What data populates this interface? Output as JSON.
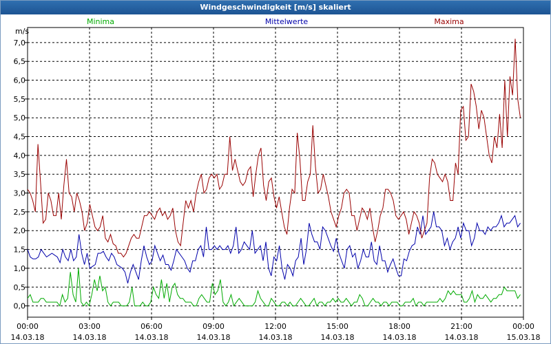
{
  "chart_data": {
    "type": "line",
    "title": "Windgeschwindigkeit [m/s] skaliert",
    "ylabel": "m/s",
    "ylim": [
      -0.3,
      7.4
    ],
    "xlim_hours": [
      0,
      24
    ],
    "grid": true,
    "y_ticks": [
      "0,0",
      "0,5",
      "1,0",
      "1,5",
      "2,0",
      "2,5",
      "3,0",
      "3,5",
      "4,0",
      "4,5",
      "5,0",
      "5,5",
      "6,0",
      "6,5",
      "7,0"
    ],
    "x_ticks": [
      {
        "time": "00:00",
        "date": "14.03.18"
      },
      {
        "time": "03:00",
        "date": "14.03.18"
      },
      {
        "time": "06:00",
        "date": "14.03.18"
      },
      {
        "time": "09:00",
        "date": "14.03.18"
      },
      {
        "time": "12:00",
        "date": "14.03.18"
      },
      {
        "time": "15:00",
        "date": "14.03.18"
      },
      {
        "time": "18:00",
        "date": "14.03.18"
      },
      {
        "time": "21:00",
        "date": "14.03.18"
      },
      {
        "time": "00:00",
        "date": "15.03.18"
      }
    ],
    "series": [
      {
        "name": "Minima",
        "color": "#00aa00",
        "values": [
          0.2,
          0.3,
          0.1,
          0.1,
          0.1,
          0.2,
          0.2,
          0.1,
          0.1,
          0.1,
          0.1,
          0.1,
          0.0,
          0.3,
          0.1,
          0.2,
          0.9,
          0.3,
          0.1,
          1.0,
          0.1,
          0.0,
          0.1,
          0.0,
          0.3,
          0.7,
          0.4,
          0.8,
          0.4,
          0.5,
          0.1,
          0.0,
          0.1,
          0.1,
          0.1,
          0.0,
          0.0,
          0.0,
          0.1,
          0.5,
          0.0,
          0.0,
          0.0,
          0.1,
          0.0,
          0.0,
          0.1,
          0.5,
          0.3,
          0.2,
          0.7,
          0.2,
          0.6,
          0.1,
          0.5,
          0.6,
          0.3,
          0.2,
          0.2,
          0.1,
          0.1,
          0.1,
          0.0,
          0.0,
          0.2,
          0.3,
          0.2,
          0.1,
          0.1,
          0.6,
          0.3,
          0.4,
          0.7,
          0.1,
          0.0,
          0.1,
          0.3,
          0.0,
          0.1,
          0.2,
          0.1,
          0.0,
          0.0,
          0.0,
          0.0,
          0.1,
          0.4,
          0.2,
          0.1,
          0.0,
          0.0,
          0.2,
          0.1,
          0.0,
          0.0,
          0.1,
          0.1,
          0.0,
          0.1,
          0.0,
          0.0,
          0.1,
          0.2,
          0.1,
          0.0,
          0.0,
          0.1,
          0.2,
          0.0,
          0.1,
          0.1,
          0.0,
          0.1,
          0.1,
          0.2,
          0.1,
          0.2,
          0.1,
          0.1,
          0.2,
          0.1,
          0.0,
          0.1,
          0.1,
          0.3,
          0.2,
          0.0,
          0.0,
          0.1,
          0.2,
          0.1,
          0.1,
          0.0,
          0.1,
          0.1,
          0.0,
          0.1,
          0.1,
          0.1,
          0.0,
          0.0,
          0.1,
          0.1,
          0.1,
          0.2,
          0.0,
          0.1,
          0.1,
          0.0,
          0.1,
          0.1,
          0.1,
          0.1,
          0.1,
          0.2,
          0.1,
          0.2,
          0.4,
          0.3,
          0.4,
          0.3,
          0.3,
          0.3,
          0.1,
          0.1,
          0.2,
          0.4,
          0.1,
          0.3,
          0.2,
          0.2,
          0.3,
          0.2,
          0.1,
          0.2,
          0.2,
          0.3,
          0.3,
          0.5,
          0.4,
          0.4,
          0.4,
          0.4,
          0.2,
          0.3
        ]
      },
      {
        "name": "Mittelwerte",
        "color": "#0000aa",
        "values": [
          1.5,
          1.3,
          1.25,
          1.25,
          1.3,
          1.5,
          1.4,
          1.3,
          1.35,
          1.4,
          1.35,
          1.3,
          1.15,
          1.5,
          1.3,
          1.2,
          1.5,
          1.2,
          1.3,
          1.9,
          1.4,
          1.1,
          1.4,
          1.0,
          1.05,
          1.1,
          1.4,
          1.4,
          1.45,
          1.3,
          1.2,
          1.4,
          1.3,
          1.1,
          1.05,
          1.0,
          0.9,
          0.6,
          0.9,
          1.1,
          0.9,
          0.7,
          1.2,
          1.6,
          1.3,
          1.1,
          1.2,
          1.6,
          1.4,
          1.2,
          1.35,
          1.1,
          1.1,
          0.95,
          1.2,
          1.5,
          1.4,
          1.3,
          1.2,
          1.0,
          0.9,
          1.2,
          1.2,
          1.5,
          1.6,
          1.3,
          2.1,
          1.5,
          1.5,
          1.6,
          1.5,
          1.6,
          1.5,
          1.5,
          1.6,
          1.4,
          1.6,
          2.1,
          1.4,
          1.5,
          1.7,
          1.6,
          1.5,
          2.0,
          1.4,
          1.5,
          1.6,
          1.2,
          1.7,
          1.0,
          0.8,
          1.3,
          1.2,
          1.6,
          1.0,
          0.7,
          1.1,
          1.0,
          0.8,
          1.2,
          1.3,
          1.8,
          1.1,
          1.5,
          2.2,
          1.9,
          1.7,
          1.7,
          1.5,
          2.1,
          2.0,
          1.8,
          1.6,
          1.45,
          1.8,
          1.4,
          1.2,
          1.0,
          1.5,
          1.6,
          1.3,
          1.4,
          1.0,
          1.2,
          1.5,
          1.3,
          1.3,
          1.7,
          1.2,
          1.1,
          1.6,
          1.2,
          1.2,
          0.9,
          1.1,
          1.25,
          1.0,
          0.8,
          0.8,
          1.25,
          1.2,
          1.45,
          1.6,
          1.65,
          2.1,
          1.9,
          2.4,
          1.9,
          2.0,
          2.1,
          2.5,
          2.1,
          2.1,
          2.0,
          1.6,
          1.8,
          1.5,
          1.7,
          1.8,
          2.1,
          1.8,
          2.2,
          2.0,
          2.0,
          1.6,
          1.8,
          2.2,
          2.0,
          2.0,
          1.9,
          2.1,
          2.0,
          2.1,
          2.1,
          2.2,
          2.4,
          2.1,
          2.2,
          2.2,
          2.3,
          2.4,
          2.1,
          2.2
        ]
      },
      {
        "name": "Maxima",
        "color": "#990000",
        "values": [
          3.1,
          3.0,
          2.8,
          2.5,
          4.3,
          3.3,
          2.2,
          2.3,
          3.0,
          2.8,
          2.4,
          2.4,
          3.0,
          2.3,
          3.2,
          3.9,
          3.0,
          2.9,
          2.5,
          3.0,
          2.8,
          2.5,
          2.0,
          2.2,
          2.7,
          2.4,
          2.1,
          2.0,
          2.1,
          2.4,
          1.8,
          1.7,
          1.9,
          1.65,
          1.6,
          1.4,
          1.4,
          1.3,
          1.4,
          1.6,
          1.8,
          1.9,
          1.8,
          1.8,
          2.1,
          2.4,
          2.4,
          2.5,
          2.4,
          2.3,
          2.5,
          2.6,
          2.4,
          2.5,
          2.3,
          2.4,
          2.6,
          2.0,
          1.7,
          1.6,
          2.2,
          2.8,
          2.6,
          2.8,
          2.5,
          3.0,
          3.3,
          3.5,
          3.0,
          3.1,
          3.4,
          3.5,
          3.4,
          3.5,
          3.1,
          3.2,
          3.5,
          3.5,
          4.5,
          3.6,
          3.9,
          3.6,
          3.3,
          3.2,
          3.3,
          3.6,
          3.7,
          2.9,
          3.5,
          4.0,
          4.2,
          3.2,
          2.8,
          3.3,
          3.4,
          2.9,
          2.6,
          2.9,
          2.5,
          2.1,
          1.9,
          2.6,
          3.1,
          3.0,
          4.6,
          3.9,
          2.8,
          2.8,
          3.3,
          3.5,
          4.8,
          3.7,
          3.0,
          3.1,
          3.5,
          3.2,
          2.9,
          2.5,
          2.3,
          2.1,
          2.4,
          2.6,
          3.0,
          3.1,
          3.0,
          2.4,
          2.4,
          2.0,
          2.3,
          2.6,
          2.5,
          2.3,
          2.6,
          2.1,
          1.7,
          2.0,
          2.4,
          2.6,
          3.1,
          3.1,
          3.0,
          2.8,
          2.4,
          2.3,
          2.4,
          2.5,
          2.3,
          1.9,
          2.2,
          2.5,
          2.4,
          2.2,
          1.8,
          2.0,
          2.2,
          3.4,
          3.9,
          3.8,
          3.5,
          3.4,
          3.3,
          3.5,
          3.3,
          2.8,
          2.8,
          3.8,
          3.5,
          5.2,
          5.3,
          4.4,
          4.5,
          5.9,
          5.7,
          5.3,
          4.7,
          5.2,
          5.0,
          4.5,
          4.0,
          3.8,
          4.5,
          4.2,
          5.1,
          4.2,
          6.0,
          4.5,
          6.1,
          5.6,
          7.1,
          5.5,
          5.0
        ]
      }
    ]
  }
}
